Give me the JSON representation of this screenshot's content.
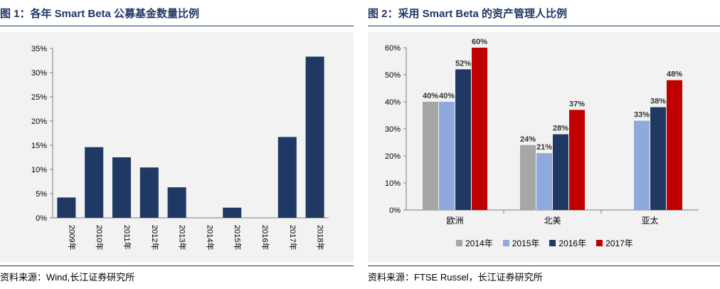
{
  "left": {
    "title": "图 1：各年 Smart Beta 公募基金数量比例",
    "source": "资料来源：Wind,长江证券研究所"
  },
  "right": {
    "title": "图 2：采用 Smart Beta 的资产管理人比例",
    "source": "资料来源：FTSE Russel，长江证券研究所"
  },
  "chart_data": [
    {
      "type": "bar",
      "title": "图 1：各年 Smart Beta 公募基金数量比例",
      "categories": [
        "2009年",
        "2010年",
        "2011年",
        "2012年",
        "2013年",
        "2014年",
        "2015年",
        "2016年",
        "2017年",
        "2018年"
      ],
      "values": [
        4.2,
        14.6,
        12.5,
        10.4,
        6.3,
        0,
        2.1,
        0,
        16.7,
        33.3
      ],
      "ylim": [
        0,
        35
      ],
      "yticks": [
        "0%",
        "5%",
        "10%",
        "15%",
        "20%",
        "25%",
        "30%",
        "35%"
      ],
      "grid": false,
      "color": "#1F3864"
    },
    {
      "type": "bar",
      "title": "图 2：采用 Smart Beta 的资产管理人比例",
      "categories": [
        "欧洲",
        "北美",
        "亚太"
      ],
      "series": [
        {
          "name": "2014年",
          "values": [
            40,
            24,
            null
          ],
          "labels": [
            "40%",
            "24%",
            ""
          ],
          "color": "#A6A6A6"
        },
        {
          "name": "2015年",
          "values": [
            40,
            21,
            33
          ],
          "labels": [
            "40%",
            "21%",
            "33%"
          ],
          "color": "#8EA9DB"
        },
        {
          "name": "2016年",
          "values": [
            52,
            28,
            38
          ],
          "labels": [
            "52%",
            "28%",
            "38%"
          ],
          "color": "#1F3864"
        },
        {
          "name": "2017年",
          "values": [
            60,
            37,
            48
          ],
          "labels": [
            "60%",
            "37%",
            "48%"
          ],
          "color": "#C00000"
        }
      ],
      "ylim": [
        0,
        60
      ],
      "yticks": [
        "0%",
        "10%",
        "20%",
        "30%",
        "40%",
        "50%",
        "60%"
      ],
      "legend": "bottom",
      "grid": false
    }
  ]
}
